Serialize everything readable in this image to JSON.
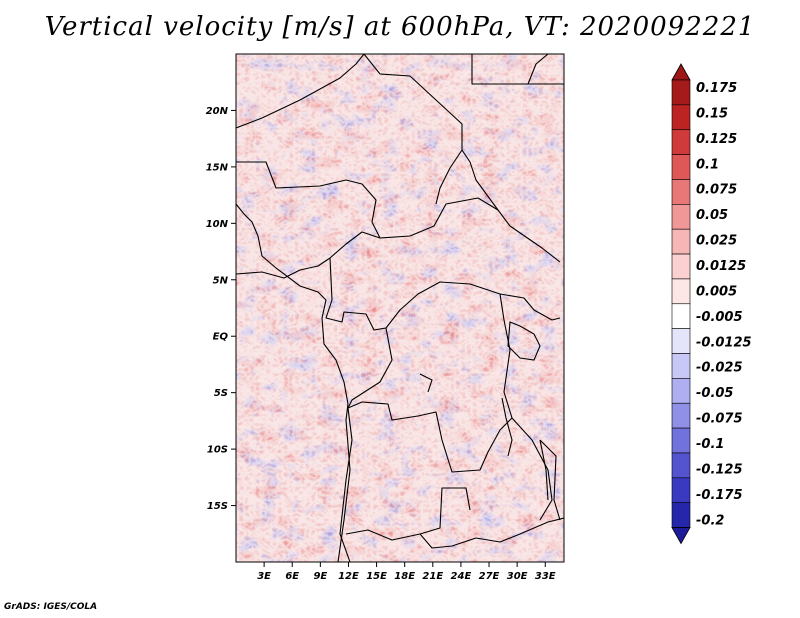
{
  "title": "Vertical velocity [m/s] at 600hPa, VT: 2020092221",
  "credit": "GrADS: IGES/COLA",
  "map": {
    "lon_range": [
      0,
      35
    ],
    "lat_range": [
      -20,
      25
    ],
    "lat_ticks": [
      {
        "label": "20N",
        "lat": 20
      },
      {
        "label": "15N",
        "lat": 15
      },
      {
        "label": "10N",
        "lat": 10
      },
      {
        "label": "5N",
        "lat": 5
      },
      {
        "label": "EQ",
        "lat": 0
      },
      {
        "label": "5S",
        "lat": -5
      },
      {
        "label": "10S",
        "lat": -10
      },
      {
        "label": "15S",
        "lat": -15
      }
    ],
    "lon_ticks": [
      {
        "label": "3E",
        "lon": 3
      },
      {
        "label": "6E",
        "lon": 6
      },
      {
        "label": "9E",
        "lon": 9
      },
      {
        "label": "12E",
        "lon": 12
      },
      {
        "label": "15E",
        "lon": 15
      },
      {
        "label": "18E",
        "lon": 18
      },
      {
        "label": "21E",
        "lon": 21
      },
      {
        "label": "24E",
        "lon": 24
      },
      {
        "label": "27E",
        "lon": 27
      },
      {
        "label": "30E",
        "lon": 30
      },
      {
        "label": "33E",
        "lon": 33
      }
    ]
  },
  "colorbar": {
    "levels": [
      {
        "label": "0.175",
        "color": "#a51a1a"
      },
      {
        "label": "0.15",
        "color": "#bc2424"
      },
      {
        "label": "0.125",
        "color": "#cf3a3a"
      },
      {
        "label": "0.1",
        "color": "#de5858"
      },
      {
        "label": "0.075",
        "color": "#e87878"
      },
      {
        "label": "0.05",
        "color": "#f09898"
      },
      {
        "label": "0.025",
        "color": "#f6b6b6"
      },
      {
        "label": "0.0125",
        "color": "#fad0d0"
      },
      {
        "label": "0.005",
        "color": "#fde6e6"
      },
      {
        "label": "-0.005",
        "color": "#ffffff"
      },
      {
        "label": "-0.0125",
        "color": "#e4e4fb"
      },
      {
        "label": "-0.025",
        "color": "#c8c8f6"
      },
      {
        "label": "-0.05",
        "color": "#aeaef0"
      },
      {
        "label": "-0.075",
        "color": "#9090e6"
      },
      {
        "label": "-0.1",
        "color": "#7272dc"
      },
      {
        "label": "-0.125",
        "color": "#5454cf"
      },
      {
        "label": "-0.175",
        "color": "#3a3ac0"
      },
      {
        "label": "-0.2",
        "color": "#2626aa"
      }
    ],
    "top_color": "#9e1616",
    "bottom_color": "#1c1c9a"
  }
}
